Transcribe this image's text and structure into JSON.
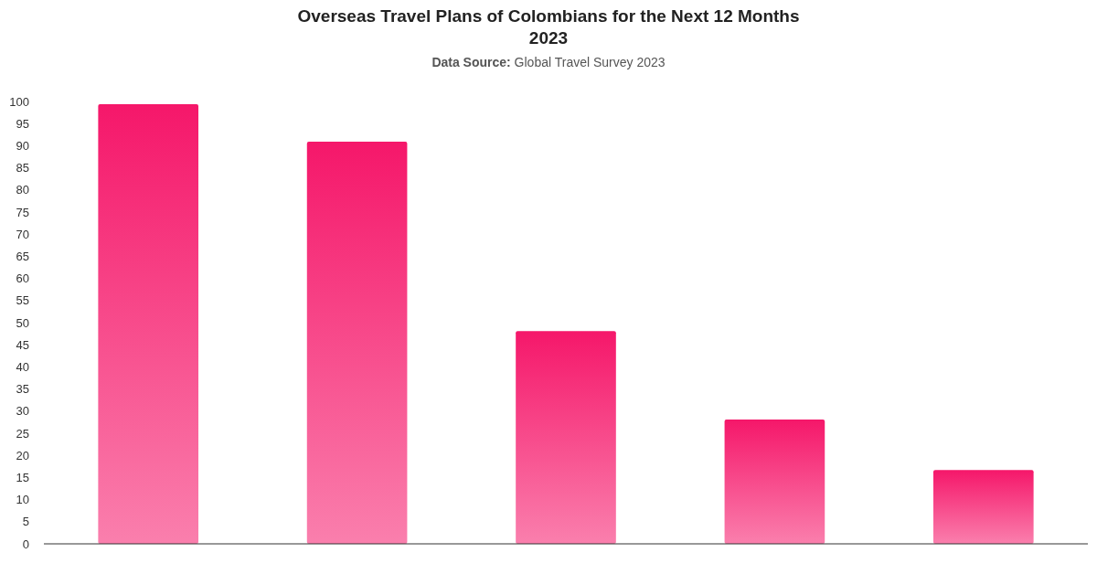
{
  "chart_data": {
    "type": "bar",
    "title": "Overseas Travel Plans of Colombians for the Next 12 Months\n2023",
    "annotations": [
      "Data Source: Global Travel Survey 2023"
    ],
    "categories": [
      null,
      null,
      null,
      null,
      null
    ],
    "values": [
      99.4,
      90.9,
      48.1,
      28.1,
      16.7
    ],
    "color": "#f5176a",
    "ylim": [
      0,
      100
    ],
    "yticks": [
      0,
      5,
      10,
      15,
      20,
      25,
      30,
      35,
      40,
      45,
      50,
      55,
      60,
      65,
      70,
      75,
      80,
      85,
      90,
      95,
      100
    ]
  }
}
